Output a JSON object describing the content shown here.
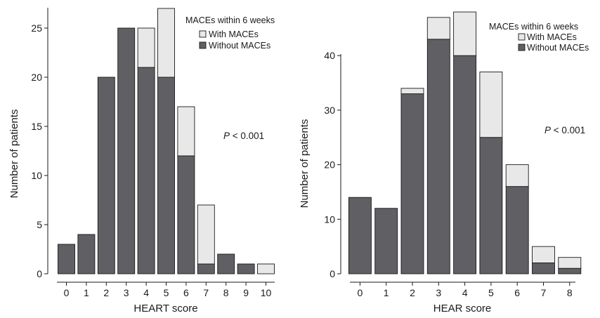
{
  "colors": {
    "without": "#606064",
    "with": "#e8e8e8",
    "axis": "#1a1a1a"
  },
  "chart_data": [
    {
      "type": "bar",
      "stacked": true,
      "title": "",
      "xlabel": "HEART score",
      "ylabel": "Number of patients",
      "categories": [
        "0",
        "1",
        "2",
        "3",
        "4",
        "5",
        "6",
        "7",
        "8",
        "9",
        "10"
      ],
      "ylim": [
        0,
        27
      ],
      "yticks": [
        0,
        5,
        10,
        15,
        20,
        25
      ],
      "series": [
        {
          "name": "Without MACEs",
          "values": [
            3,
            4,
            20,
            25,
            21,
            20,
            12,
            1,
            2,
            1,
            0
          ]
        },
        {
          "name": "With MACEs",
          "values": [
            0,
            0,
            0,
            0,
            4,
            7,
            5,
            6,
            0,
            0,
            1
          ]
        }
      ],
      "legend": {
        "title": "MACEs within 6 weeks",
        "items": [
          "With MACEs",
          "Without MACEs"
        ],
        "position": "top-right"
      },
      "annotation": {
        "italic": "P",
        "text": " < 0.001"
      }
    },
    {
      "type": "bar",
      "stacked": true,
      "title": "",
      "xlabel": "HEAR score",
      "ylabel": "Number of patients",
      "categories": [
        "0",
        "1",
        "2",
        "3",
        "4",
        "5",
        "6",
        "7",
        "8"
      ],
      "ylim": [
        0,
        48
      ],
      "yticks": [
        0,
        10,
        20,
        30,
        40
      ],
      "series": [
        {
          "name": "Without MACEs",
          "values": [
            14,
            12,
            33,
            43,
            40,
            25,
            16,
            2,
            1
          ]
        },
        {
          "name": "With MACEs",
          "values": [
            0,
            0,
            1,
            4,
            8,
            12,
            4,
            3,
            2
          ]
        }
      ],
      "legend": {
        "title": "MACEs within 6 weeks",
        "items": [
          "With MACEs",
          "Without MACEs"
        ],
        "position": "top-right"
      },
      "annotation": {
        "italic": "P",
        "text": " < 0.001"
      }
    }
  ]
}
